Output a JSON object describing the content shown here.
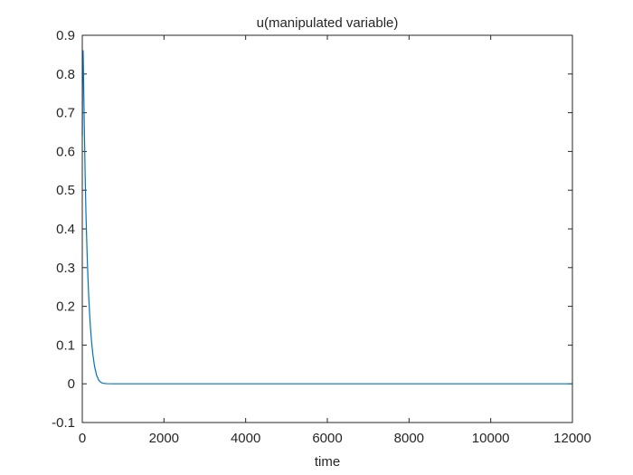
{
  "chart_data": {
    "type": "line",
    "title": "u(manipulated variable)",
    "xlabel": "time",
    "ylabel": "",
    "xlim": [
      0,
      12000
    ],
    "ylim": [
      -0.1,
      0.9
    ],
    "xticks": [
      0,
      2000,
      4000,
      6000,
      8000,
      10000,
      12000
    ],
    "yticks": [
      -0.1,
      0,
      0.1,
      0.2,
      0.3,
      0.4,
      0.5,
      0.6,
      0.7,
      0.8,
      0.9
    ],
    "xtick_labels": [
      "0",
      "2000",
      "4000",
      "6000",
      "8000",
      "10000",
      "12000"
    ],
    "ytick_labels": [
      "-0.1",
      "0",
      "0.1",
      "0.2",
      "0.3",
      "0.4",
      "0.5",
      "0.6",
      "0.7",
      "0.8",
      "0.9"
    ],
    "grid": false,
    "series": [
      {
        "color": "#0072BD",
        "x": [
          0,
          5,
          10,
          20,
          30,
          40,
          50,
          60,
          70,
          80,
          90,
          100,
          120,
          140,
          160,
          180,
          200,
          230,
          260,
          300,
          350,
          400,
          450,
          500,
          600,
          800,
          1000,
          2000,
          4000,
          6000,
          8000,
          10000,
          12000
        ],
        "y": [
          0.64,
          0.76,
          0.85,
          0.86,
          0.8,
          0.73,
          0.66,
          0.6,
          0.54,
          0.49,
          0.44,
          0.4,
          0.33,
          0.27,
          0.22,
          0.18,
          0.145,
          0.105,
          0.075,
          0.045,
          0.022,
          0.01,
          0.004,
          0.0015,
          0.0003,
          0,
          0,
          0,
          0,
          0,
          0,
          0,
          0
        ]
      }
    ]
  }
}
